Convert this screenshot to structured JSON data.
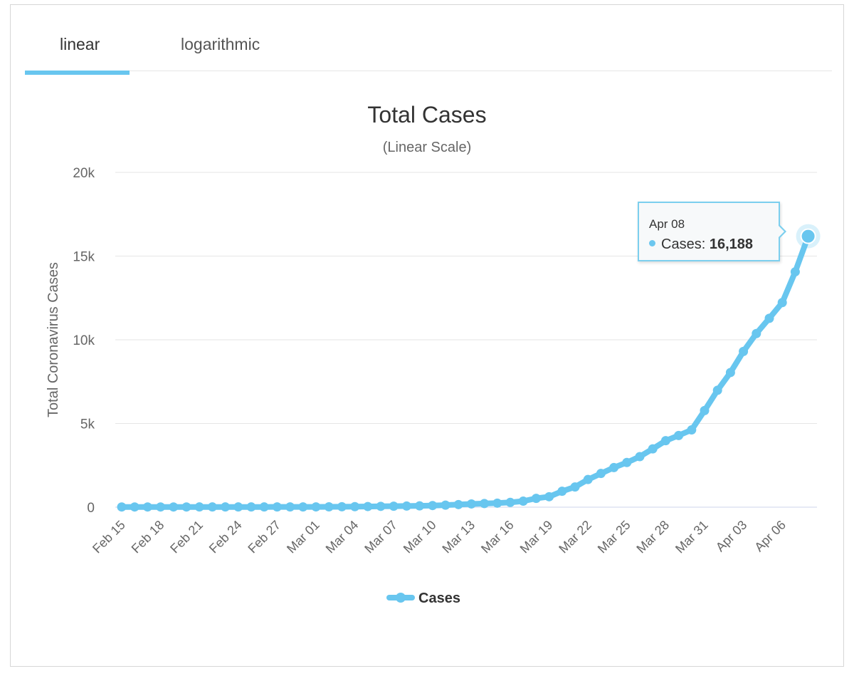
{
  "tabs": [
    {
      "label": "linear",
      "active": true
    },
    {
      "label": "logarithmic",
      "active": false
    }
  ],
  "tooltip": {
    "date": "Apr 08",
    "series": "Cases",
    "separator": ":",
    "value": "16,188"
  },
  "colors": {
    "series": "#68c6ef",
    "tab_accent": "#68c6ef",
    "grid": "#e6e6e6"
  },
  "chart_data": {
    "type": "line",
    "title": "Total Cases",
    "subtitle": "(Linear Scale)",
    "xlabel": "",
    "ylabel": "Total Coronavirus Cases",
    "ylim": [
      0,
      20000
    ],
    "yticks": [
      0,
      5000,
      10000,
      15000,
      20000
    ],
    "ytick_labels": [
      "0",
      "5k",
      "10k",
      "15k",
      "20k"
    ],
    "xtick_labels": [
      "Feb 15",
      "Feb 18",
      "Feb 21",
      "Feb 24",
      "Feb 27",
      "Mar 01",
      "Mar 04",
      "Mar 07",
      "Mar 10",
      "Mar 13",
      "Mar 16",
      "Mar 19",
      "Mar 22",
      "Mar 25",
      "Mar 28",
      "Mar 31",
      "Apr 03",
      "Apr 06"
    ],
    "legend": "bottom-center",
    "grid": true,
    "series": [
      {
        "name": "Cases",
        "x": [
          "Feb 15",
          "Feb 16",
          "Feb 17",
          "Feb 18",
          "Feb 19",
          "Feb 20",
          "Feb 21",
          "Feb 22",
          "Feb 23",
          "Feb 24",
          "Feb 25",
          "Feb 26",
          "Feb 27",
          "Feb 28",
          "Feb 29",
          "Mar 01",
          "Mar 02",
          "Mar 03",
          "Mar 04",
          "Mar 05",
          "Mar 06",
          "Mar 07",
          "Mar 08",
          "Mar 09",
          "Mar 10",
          "Mar 11",
          "Mar 12",
          "Mar 13",
          "Mar 14",
          "Mar 15",
          "Mar 16",
          "Mar 17",
          "Mar 18",
          "Mar 19",
          "Mar 20",
          "Mar 21",
          "Mar 22",
          "Mar 23",
          "Mar 24",
          "Mar 25",
          "Mar 26",
          "Mar 27",
          "Mar 28",
          "Mar 29",
          "Mar 30",
          "Mar 31",
          "Apr 01",
          "Apr 02",
          "Apr 03",
          "Apr 04",
          "Apr 05",
          "Apr 06",
          "Apr 07",
          "Apr 08"
        ],
        "values": [
          13,
          13,
          13,
          13,
          13,
          13,
          14,
          14,
          14,
          14,
          14,
          14,
          15,
          15,
          15,
          18,
          21,
          26,
          32,
          39,
          50,
          59,
          67,
          81,
          98,
          123,
          156,
          193,
          219,
          241,
          285,
          360,
          526,
          624,
          950,
          1207,
          1652,
          2014,
          2365,
          2669,
          3021,
          3485,
          3972,
          4283,
          4615,
          5770,
          6982,
          8045,
          9304,
          10373,
          11283,
          12223,
          14060,
          16188
        ]
      }
    ]
  }
}
